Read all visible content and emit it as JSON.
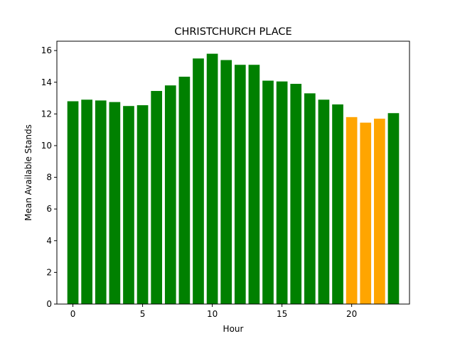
{
  "chart_data": {
    "type": "bar",
    "title": "CHRISTCHURCH PLACE",
    "xlabel": "Hour",
    "ylabel": "Mean Available Stands",
    "x": [
      0,
      1,
      2,
      3,
      4,
      5,
      6,
      7,
      8,
      9,
      10,
      11,
      12,
      13,
      14,
      15,
      16,
      17,
      18,
      19,
      20,
      21,
      22,
      23
    ],
    "values": [
      12.8,
      12.9,
      12.85,
      12.75,
      12.5,
      12.55,
      13.45,
      13.8,
      14.35,
      15.5,
      15.8,
      15.4,
      15.1,
      15.1,
      14.1,
      14.05,
      13.9,
      13.3,
      12.9,
      12.6,
      11.8,
      11.45,
      11.7,
      12.05
    ],
    "colors": [
      "green",
      "green",
      "green",
      "green",
      "green",
      "green",
      "green",
      "green",
      "green",
      "green",
      "green",
      "green",
      "green",
      "green",
      "green",
      "green",
      "green",
      "green",
      "green",
      "green",
      "orange",
      "orange",
      "orange",
      "green"
    ],
    "color_map": {
      "green": "#008000",
      "orange": "#ffa500"
    },
    "xticks": [
      "0",
      "5",
      "10",
      "15",
      "20"
    ],
    "xtick_values": [
      0,
      5,
      10,
      15,
      20
    ],
    "yticks": [
      "0",
      "2",
      "4",
      "6",
      "8",
      "10",
      "12",
      "14",
      "16"
    ],
    "ytick_values": [
      0,
      2,
      4,
      6,
      8,
      10,
      12,
      14,
      16
    ],
    "xlim": [
      -1.15,
      24.15
    ],
    "ylim": [
      0,
      16.59
    ],
    "grid": false,
    "legend": false
  }
}
